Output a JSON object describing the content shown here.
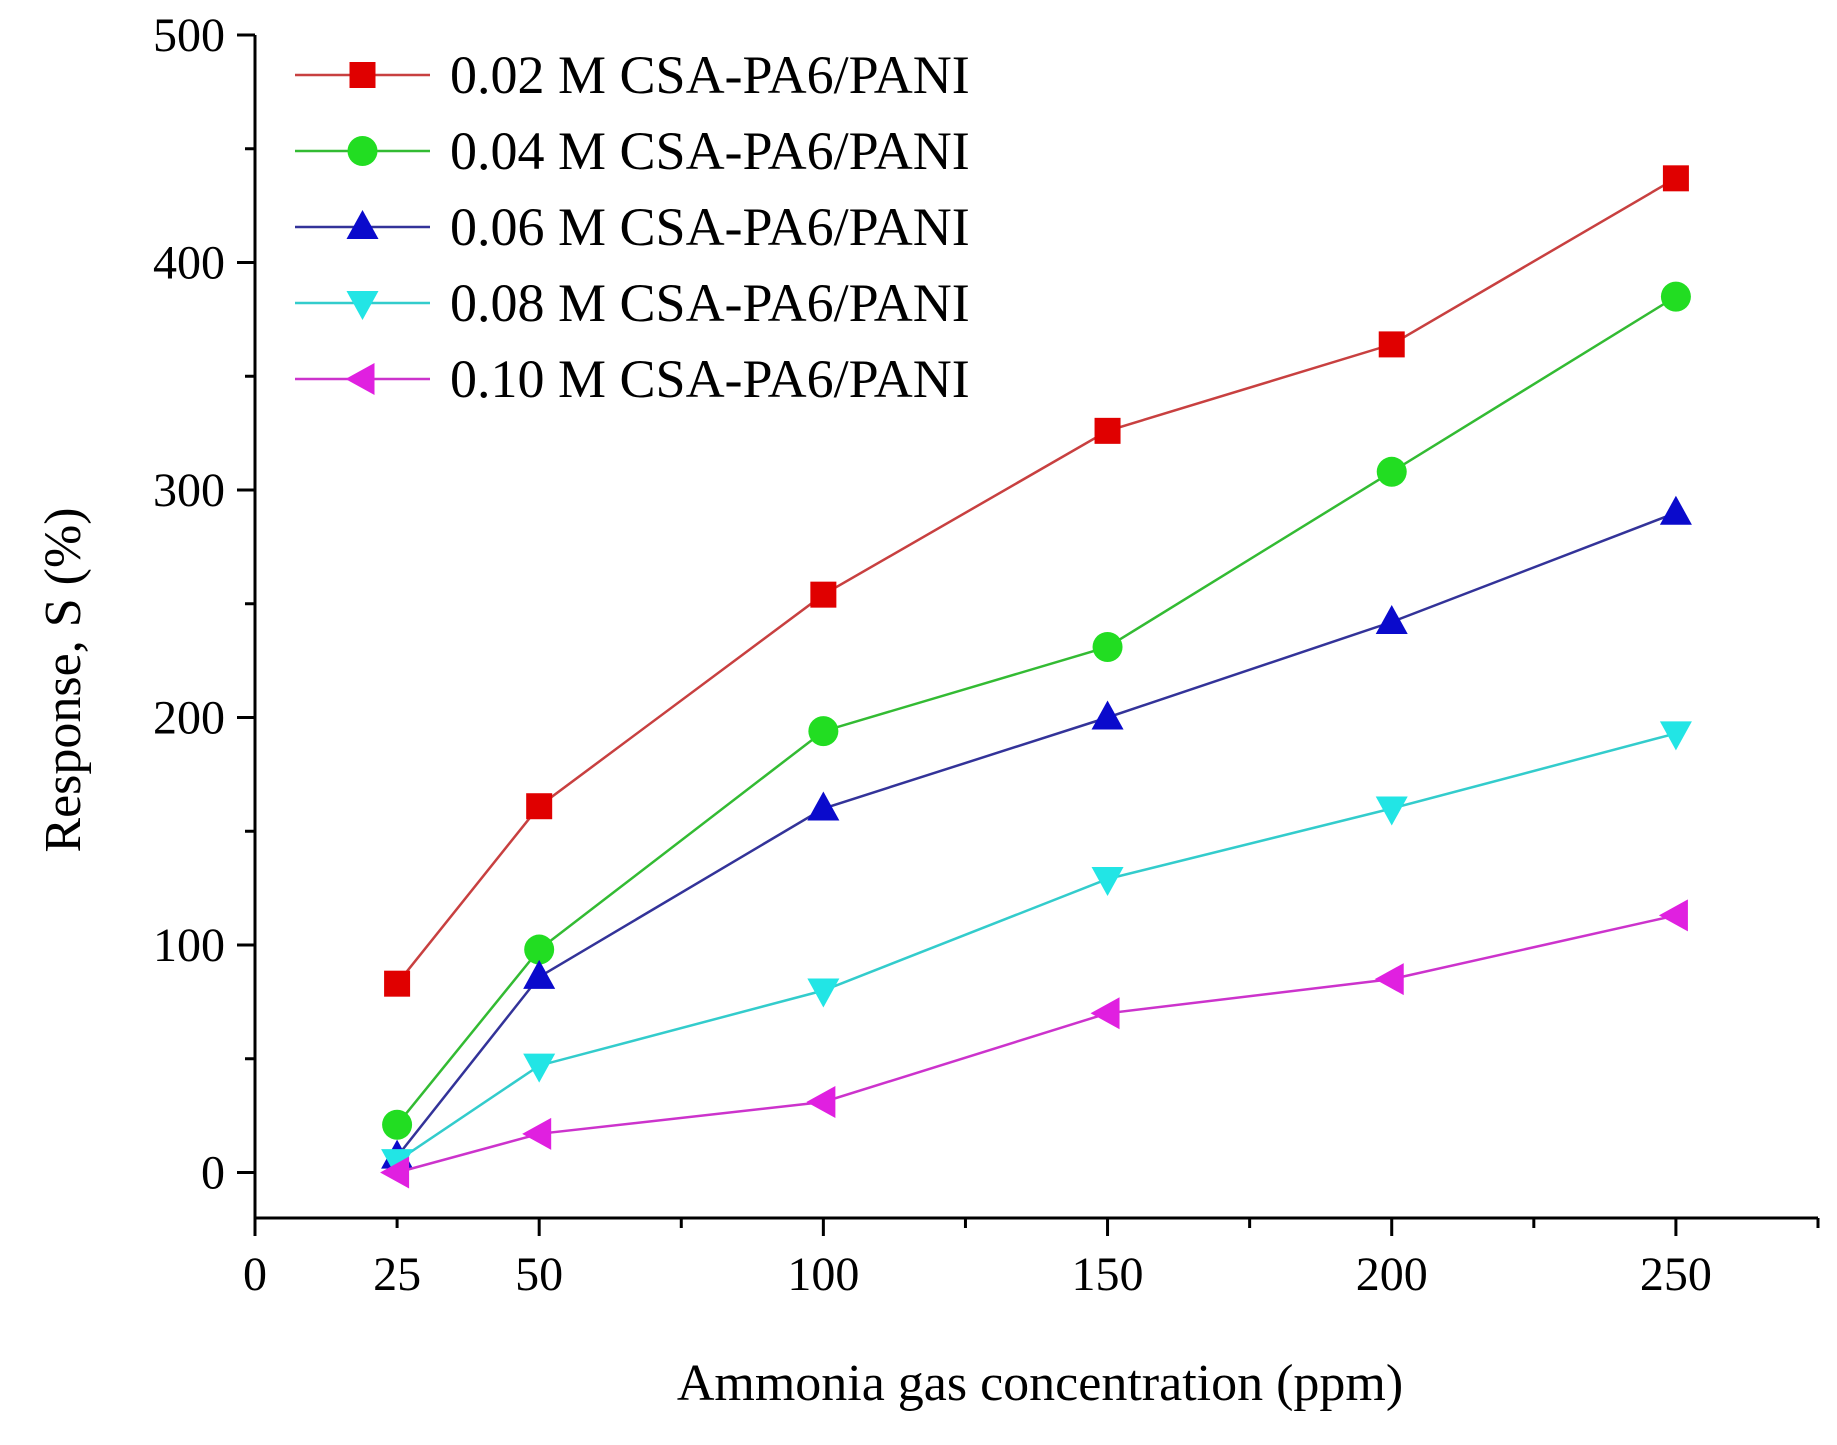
{
  "chart_data": {
    "type": "line",
    "title": "",
    "xlabel": "Ammonia gas concentration (ppm)",
    "ylabel": "Response, S (%)",
    "xlim": [
      0,
      275
    ],
    "ylim": [
      -20,
      500
    ],
    "x_ticks": [
      0,
      25,
      50,
      100,
      150,
      200,
      250
    ],
    "x_tick_labels": [
      "0",
      "25",
      "50",
      "100",
      "150",
      "200",
      "250"
    ],
    "y_ticks": [
      0,
      100,
      200,
      300,
      400,
      500
    ],
    "y_tick_labels": [
      "0",
      "100",
      "200",
      "300",
      "400",
      "500"
    ],
    "x": [
      25,
      50,
      100,
      150,
      200,
      250
    ],
    "legend_position": "top-left",
    "grid": false,
    "series": [
      {
        "name": "0.02 M CSA-PA6/PANI",
        "marker": "square",
        "color": "#e00000",
        "line_color": "#c84040",
        "values": [
          83,
          161,
          254,
          326,
          364,
          437
        ]
      },
      {
        "name": "0.04 M CSA-PA6/PANI",
        "marker": "circle",
        "color": "#22dd22",
        "line_color": "#33bb33",
        "values": [
          21,
          98,
          194,
          231,
          308,
          385
        ]
      },
      {
        "name": "0.06 M CSA-PA6/PANI",
        "marker": "triangle-up",
        "color": "#0a0acc",
        "line_color": "#333399",
        "values": [
          7,
          86,
          160,
          200,
          242,
          290
        ]
      },
      {
        "name": "0.08 M CSA-PA6/PANI",
        "marker": "triangle-down",
        "color": "#22e5e5",
        "line_color": "#33cccc",
        "values": [
          5,
          47,
          80,
          129,
          160,
          193
        ]
      },
      {
        "name": "0.10 M CSA-PA6/PANI",
        "marker": "triangle-left",
        "color": "#e020e0",
        "line_color": "#cc33cc",
        "values": [
          0,
          17,
          31,
          70,
          85,
          113
        ]
      }
    ]
  }
}
